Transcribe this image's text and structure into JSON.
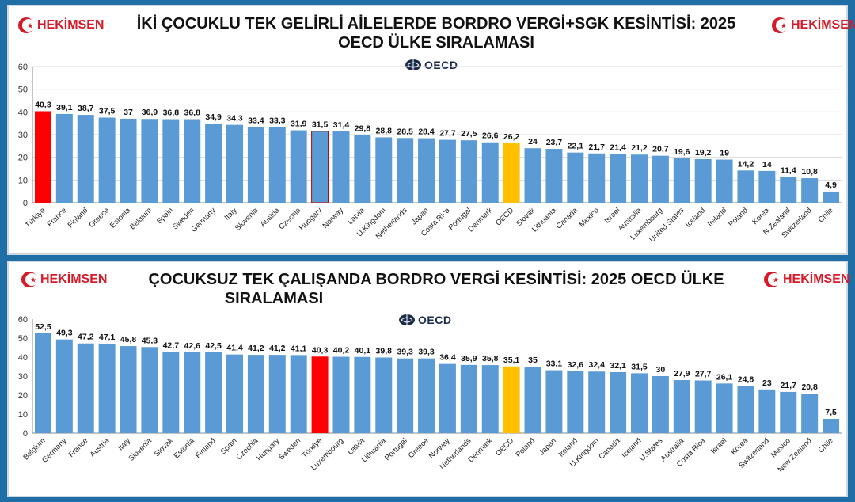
{
  "brand": {
    "logo_text": "HEKİMSEN",
    "color": "#d71a28"
  },
  "source_mark": {
    "text": "OECD"
  },
  "colors": {
    "bar": "#5b9bd5",
    "highlight_turkiye": "#ff0000",
    "highlight_oecd": "#ffc000",
    "frame": "#1f6fa6"
  },
  "charts": [
    {
      "title_line1": "İKİ ÇOCUKLU TEK GELİRLİ AİLELERDE BORDRO VERGİ+SGK KESİNTİSİ: 2025",
      "title_line2": "OECD ÜLKE SIRALAMASI"
    },
    {
      "title_line1": "ÇOCUKSUZ TEK ÇALIŞANDA BORDRO VERGİ  KESİNTİSİ: 2025 OECD ÜLKE",
      "title_line2": "SIRALAMASI"
    }
  ],
  "chart_data": [
    {
      "type": "bar",
      "title": "İKİ ÇOCUKLU TEK GELİRLİ AİLELERDE BORDRO VERGİ+SGK KESİNTİSİ: 2025 OECD ÜLKE SIRALAMASI",
      "ylim": [
        0,
        60
      ],
      "yticks": [
        0,
        10,
        20,
        30,
        40,
        50,
        60
      ],
      "grid": true,
      "categories": [
        "Türkiye",
        "France",
        "Finland",
        "Greece",
        "Estonia",
        "Belgium",
        "Spain",
        "Sweden",
        "Germany",
        "Italy",
        "Slovenia",
        "Austria",
        "Czechia",
        "Hungary",
        "Norway",
        "Latvia",
        "U.Kingdom",
        "Netherlands",
        "Japan",
        "Costa Rica",
        "Portugal",
        "Denmark",
        "OECD",
        "Slovak",
        "Lithuania",
        "Canada",
        "Mexico",
        "Israel",
        "Australia",
        "Luxembourg",
        "United States",
        "Iceland",
        "Ireland",
        "Poland",
        "Korea",
        "N.Zealand",
        "Switzerland",
        "Chile"
      ],
      "values": [
        40.3,
        39.1,
        38.7,
        37.5,
        37,
        36.9,
        36.8,
        36.8,
        34.9,
        34.3,
        33.4,
        33.3,
        31.9,
        31.5,
        31.4,
        29.8,
        28.8,
        28.5,
        28.4,
        27.7,
        27.5,
        26.6,
        26.2,
        24,
        23.7,
        22.1,
        21.7,
        21.4,
        21.2,
        20.7,
        19.6,
        19.2,
        19,
        14.2,
        14,
        11.4,
        10.8,
        4.9
      ],
      "value_labels": [
        "40,3",
        "39,1",
        "38,7",
        "37,5",
        "37",
        "36,9",
        "36,8",
        "36,8",
        "34,9",
        "34,3",
        "33,4",
        "33,3",
        "31,9",
        "31,5",
        "31,4",
        "29,8",
        "28,8",
        "28,5",
        "28,4",
        "27,7",
        "27,5",
        "26,6",
        "26,2",
        "24",
        "23,7",
        "22,1",
        "21,7",
        "21,4",
        "21,2",
        "20,7",
        "19,6",
        "19,2",
        "19",
        "14,2",
        "14",
        "11,4",
        "10,8",
        "4,9"
      ],
      "highlights": {
        "Türkiye": "#ff0000",
        "OECD": "#ffc000"
      },
      "outlined": [
        "Hungary"
      ]
    },
    {
      "type": "bar",
      "title": "ÇOCUKSUZ TEK ÇALIŞANDA BORDRO VERGİ  KESİNTİSİ: 2025 OECD ÜLKE SIRALAMASI",
      "ylim": [
        0,
        60
      ],
      "yticks": [
        0,
        10,
        20,
        30,
        40,
        50,
        60
      ],
      "grid": false,
      "categories": [
        "Belgium",
        "Germany",
        "France",
        "Austria",
        "Italy",
        "Slovenia",
        "Slovak",
        "Estonia",
        "Finland",
        "Spain",
        "Czechia",
        "Hungary",
        "Sweden",
        "Türkiye",
        "Luxembourg",
        "Latvia",
        "Lithuania",
        "Portugal",
        "Greece",
        "Norway",
        "Netherlands",
        "Denmark",
        "OECD",
        "Poland",
        "Japan",
        "Ireland",
        "U.Kingdom",
        "Canada",
        "Iceland",
        "U.States",
        "Australia",
        "Costa Rica",
        "Israel",
        "Korea",
        "Switzerland",
        "Mexico",
        "New Zealand",
        "Chile"
      ],
      "values": [
        52.5,
        49.3,
        47.2,
        47.1,
        45.8,
        45.3,
        42.7,
        42.6,
        42.5,
        41.4,
        41.2,
        41.2,
        41.1,
        40.3,
        40.2,
        40.1,
        39.8,
        39.3,
        39.3,
        36.4,
        35.9,
        35.8,
        35.1,
        35,
        33.1,
        32.6,
        32.4,
        32.1,
        31.5,
        30,
        27.9,
        27.7,
        26.1,
        24.8,
        23,
        21.7,
        20.8,
        7.5
      ],
      "value_labels": [
        "52,5",
        "49,3",
        "47,2",
        "47,1",
        "45,8",
        "45,3",
        "42,7",
        "42,6",
        "42,5",
        "41,4",
        "41,2",
        "41,2",
        "41,1",
        "40,3",
        "40,2",
        "40,1",
        "39,8",
        "39,3",
        "39,3",
        "36,4",
        "35,9",
        "35,8",
        "35,1",
        "35",
        "33,1",
        "32,6",
        "32,4",
        "32,1",
        "31,5",
        "30",
        "27,9",
        "27,7",
        "26,1",
        "24,8",
        "23",
        "21,7",
        "20,8",
        "7,5"
      ],
      "highlights": {
        "Türkiye": "#ff0000",
        "OECD": "#ffc000"
      },
      "outlined": []
    }
  ]
}
